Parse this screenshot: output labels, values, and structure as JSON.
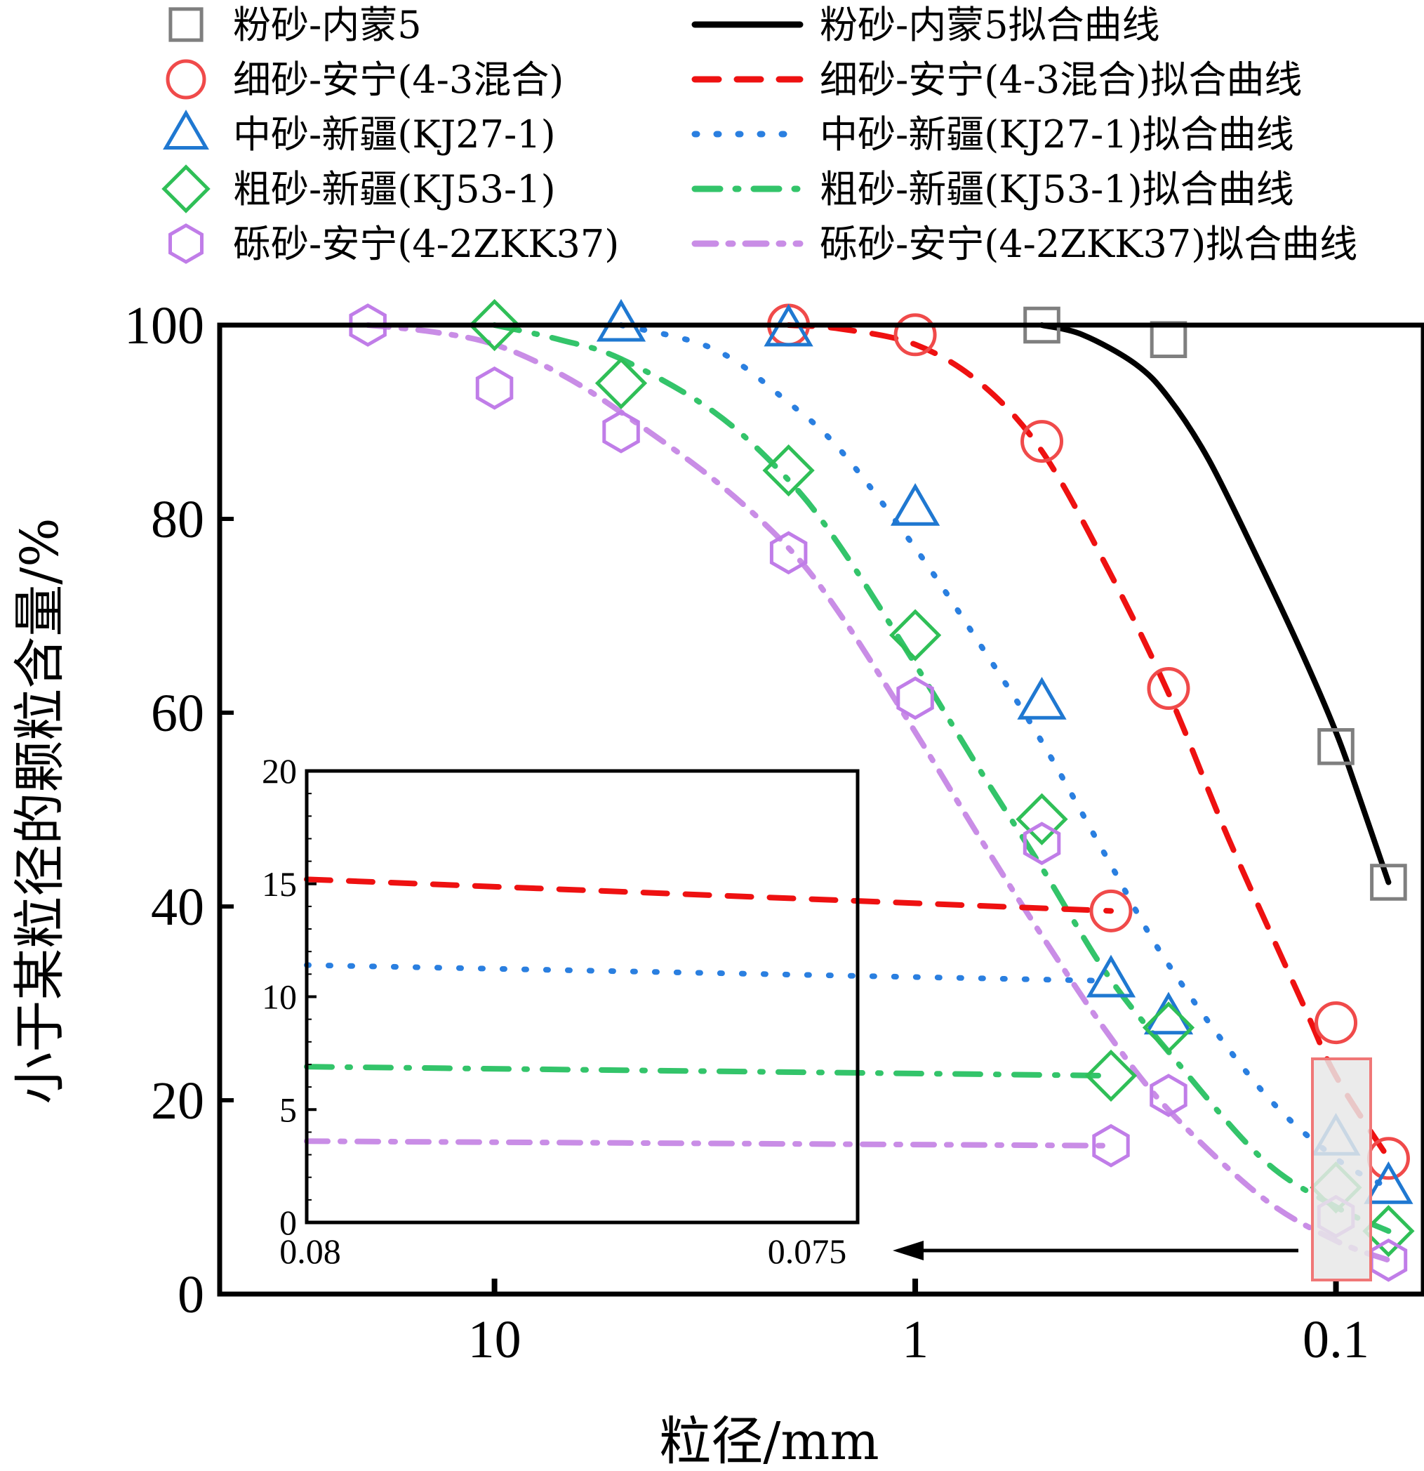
{
  "chart_data": {
    "type": "line",
    "xlabel": "粒径/mm",
    "ylabel": "小于某粒径的颗粒含量/%",
    "x_scale": "log",
    "x_reversed": true,
    "xlim": [
      45,
      0.062
    ],
    "ylim": [
      0,
      100
    ],
    "x_ticks": [
      "10",
      "1",
      "0.1"
    ],
    "y_ticks": [
      "0",
      "20",
      "40",
      "60",
      "80",
      "100"
    ],
    "series": [
      {
        "name": "粉砂-内蒙5",
        "fit_name": "粉砂-内蒙5拟合曲线",
        "color": "#7f7f7f",
        "fit_color": "#000000",
        "marker": "square",
        "x": [
          0.5,
          0.25,
          0.1,
          0.075
        ],
        "y": [
          100,
          98.5,
          56.5,
          42.5
        ],
        "fit_x": [
          0.5,
          0.4,
          0.3,
          0.25,
          0.2,
          0.15,
          0.12,
          0.1,
          0.09,
          0.075
        ],
        "fit_y": [
          100,
          99,
          96,
          92.5,
          86,
          75,
          66,
          58,
          52.5,
          42.5
        ]
      },
      {
        "name": "细砂-安宁(4-3混合)",
        "fit_name": "细砂-安宁(4-3混合)拟合曲线",
        "color": "#f04a4a",
        "fit_color": "#ee1111",
        "marker": "circle",
        "x": [
          2,
          1,
          0.5,
          0.25,
          0.1,
          0.075
        ],
        "y": [
          100,
          99,
          88,
          62.5,
          28,
          14
        ],
        "fit_x": [
          2,
          1.5,
          1,
          0.7,
          0.5,
          0.35,
          0.25,
          0.18,
          0.12,
          0.1,
          0.075
        ],
        "fit_y": [
          100,
          99.6,
          98,
          94,
          87,
          75,
          62,
          47,
          30,
          22.5,
          14
        ]
      },
      {
        "name": "中砂-新疆(KJ27-1)",
        "fit_name": "中砂-新疆(KJ27-1)拟合曲线",
        "color": "#1f78d1",
        "fit_color": "#2a7fe0",
        "marker": "triangle",
        "x": [
          5,
          2,
          1,
          0.5,
          0.25,
          0.1,
          0.075
        ],
        "y": [
          100,
          99.5,
          81,
          61,
          28.5,
          16,
          11
        ],
        "fit_x": [
          5,
          3,
          2,
          1.5,
          1,
          0.7,
          0.5,
          0.35,
          0.25,
          0.15,
          0.1,
          0.075
        ],
        "fit_y": [
          100,
          97.5,
          92,
          87,
          77,
          67,
          57,
          45,
          34,
          21,
          14,
          11
        ]
      },
      {
        "name": "粗砂-新疆(KJ53-1)",
        "fit_name": "粗砂-新疆(KJ53-1)拟合曲线",
        "color": "#2fbf57",
        "fit_color": "#33c46a",
        "marker": "diamond",
        "x": [
          10,
          5,
          2,
          1,
          0.5,
          0.25,
          0.1,
          0.075
        ],
        "y": [
          100,
          94,
          85,
          68,
          49,
          27.5,
          11,
          6.5
        ],
        "fit_x": [
          10,
          7,
          5,
          3,
          2,
          1.5,
          1,
          0.7,
          0.5,
          0.35,
          0.25,
          0.15,
          0.1,
          0.075
        ],
        "fit_y": [
          100,
          98.5,
          96.5,
          91,
          84,
          77,
          65,
          54,
          44,
          33,
          25,
          14,
          9,
          6.5
        ]
      },
      {
        "name": "砾砂-安宁(4-2ZKK37)",
        "fit_name": "砾砂-安宁(4-2ZKK37)拟合曲线",
        "color": "#c07de8",
        "fit_color": "#c98de6",
        "marker": "hexagon",
        "x": [
          20,
          10,
          5,
          2,
          1,
          0.5,
          0.25,
          0.1,
          0.075
        ],
        "y": [
          100,
          93.5,
          89,
          76.5,
          61.5,
          46.5,
          20.5,
          8,
          3.5
        ],
        "fit_x": [
          20,
          14,
          10,
          7,
          5,
          3,
          2,
          1.5,
          1,
          0.7,
          0.5,
          0.35,
          0.25,
          0.15,
          0.1,
          0.075
        ],
        "fit_y": [
          100,
          99.3,
          98,
          95,
          91,
          84,
          77,
          70,
          58,
          47,
          37,
          27,
          19,
          10,
          5.5,
          3.5
        ]
      }
    ],
    "inset": {
      "xlim": [
        0.08,
        0.075
      ],
      "ylim": [
        0,
        20
      ],
      "x_ticks": [
        "0.08",
        "0.075"
      ],
      "y_ticks": [
        "0",
        "5",
        "10",
        "15",
        "20"
      ],
      "series": [
        {
          "x": [
            0.08,
            0.075
          ],
          "y": [
            15.2,
            13.8
          ]
        },
        {
          "x": [
            0.08,
            0.075
          ],
          "y": [
            11.4,
            10.7
          ]
        },
        {
          "x": [
            0.08,
            0.075
          ],
          "y": [
            6.9,
            6.5
          ]
        },
        {
          "x": [
            0.08,
            0.075
          ],
          "y": [
            3.6,
            3.4
          ]
        }
      ]
    },
    "legend": "top"
  }
}
